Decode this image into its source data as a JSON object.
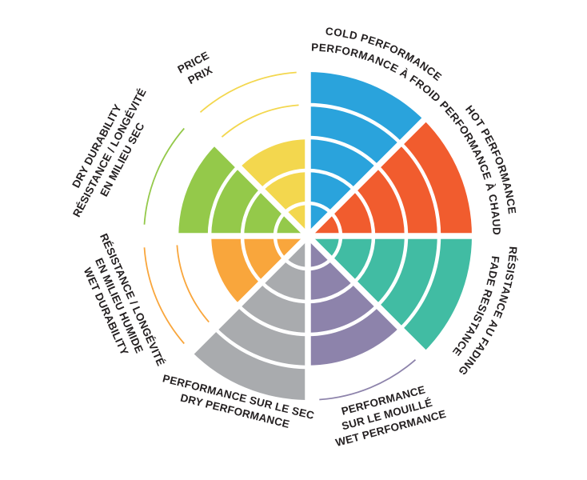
{
  "page": {
    "background_color": "#ffffff",
    "text_color": "#231f20",
    "ring_line_color": "#ffffff"
  },
  "chart_data": {
    "type": "polar-wheel",
    "max_rings": 5,
    "grid": "concentric-rings-with-radial-gaps",
    "legend_position": "around-perimeter",
    "sectors": [
      {
        "id": "cold-performance",
        "value": 5,
        "color": "#2AA3DC",
        "labels": [
          "COLD PERFORMANCE",
          "PERFORMANCE À FROID"
        ]
      },
      {
        "id": "hot-performance",
        "value": 5,
        "color": "#F15C2E",
        "labels": [
          "HOT PERFORMANCE",
          "PERFORMANCE À CHAUD"
        ]
      },
      {
        "id": "fade-resistance",
        "value": 5,
        "color": "#41BCA3",
        "labels": [
          "RÉSISTANCE AU FADING",
          "FADE RESISTANCE"
        ]
      },
      {
        "id": "wet-performance",
        "value": 4,
        "color": "#8D83AB",
        "labels": [
          "PERFORMANCE",
          "SUR LE MOUILLÉ",
          "WET PERFORMANCE"
        ]
      },
      {
        "id": "dry-performance",
        "value": 5,
        "color": "#A9ABAE",
        "labels": [
          "PERFORMANCE SUR LE SEC",
          "DRY PERFORMANCE"
        ]
      },
      {
        "id": "wet-durability",
        "value": 3,
        "color": "#F9A63C",
        "labels": [
          "RÉSISTANCE / LONGÉVITÉ",
          "EN MILIEU HUMIDE",
          "WET DURABILITY"
        ]
      },
      {
        "id": "dry-durability",
        "value": 4,
        "color": "#94C94A",
        "labels": [
          "DRY DURABILITY",
          "RÉSISTANCE / LONGÉVITÉ",
          "EN MILIEU SEC"
        ]
      },
      {
        "id": "price",
        "value": 3,
        "color": "#F3D74E",
        "labels": [
          "PRICE",
          "PRIX"
        ]
      }
    ]
  }
}
